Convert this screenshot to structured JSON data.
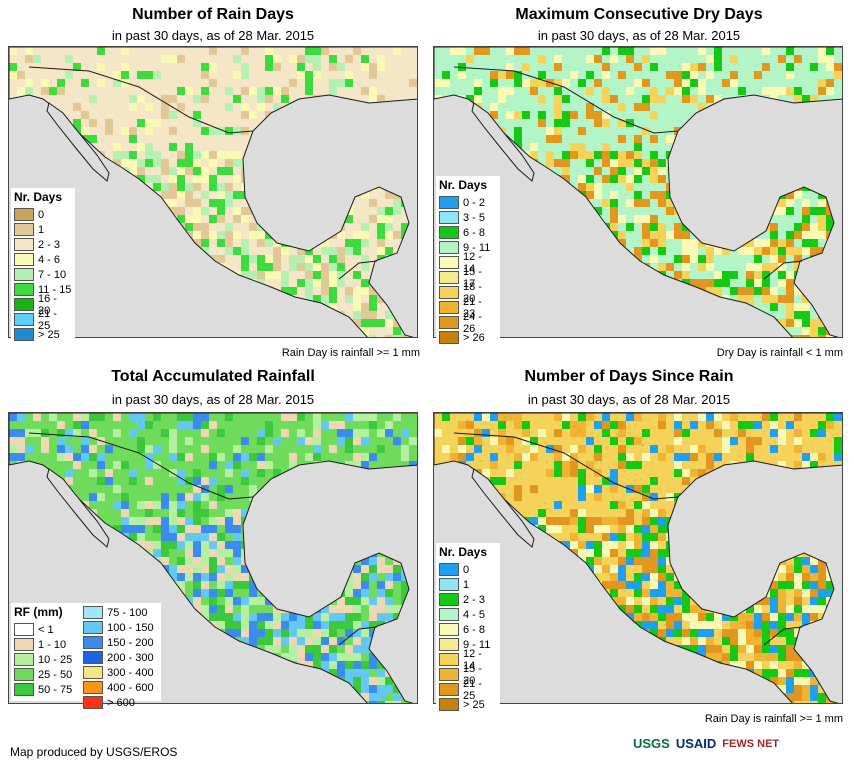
{
  "panels": [
    {
      "title": "Number of Rain Days",
      "subtitle": "in past 30 days, as of 28 Mar. 2015",
      "note": "Rain Day is rainfall >= 1 mm",
      "legend_title": "Nr. Days",
      "legend": [
        {
          "label": "0",
          "color": "#c8a55a"
        },
        {
          "label": "1",
          "color": "#e1c896"
        },
        {
          "label": "2 - 3",
          "color": "#f5e6c8"
        },
        {
          "label": "4 - 6",
          "color": "#fafab4"
        },
        {
          "label": "7 - 10",
          "color": "#b4f0b4"
        },
        {
          "label": "11 - 15",
          "color": "#3cdc3c"
        },
        {
          "label": "16 - 20",
          "color": "#14b414"
        },
        {
          "label": "21 - 25",
          "color": "#5ad2f5"
        },
        {
          "label": "> 25",
          "color": "#1e8cd2"
        }
      ],
      "palette": [
        "#f5e6c8",
        "#f5e6c8",
        "#fafab4",
        "#b4f0b4",
        "#e1c896",
        "#3cdc3c"
      ]
    },
    {
      "title": "Maximum Consecutive Dry Days",
      "subtitle": "in past 30 days, as of 28 Mar. 2015",
      "note": "Dry Day is rainfall < 1 mm",
      "legend_title": "Nr. Days",
      "legend": [
        {
          "label": "0 - 2",
          "color": "#1ea0f0"
        },
        {
          "label": "3 - 5",
          "color": "#8ce6f5"
        },
        {
          "label": "6 - 8",
          "color": "#14c814"
        },
        {
          "label": "9 - 11",
          "color": "#b4f5c8"
        },
        {
          "label": "12 - 14",
          "color": "#fafab4"
        },
        {
          "label": "15 - 17",
          "color": "#f5eb8c"
        },
        {
          "label": "18 - 20",
          "color": "#f5d25a"
        },
        {
          "label": "21 - 23",
          "color": "#f0b432"
        },
        {
          "label": "24 - 26",
          "color": "#e1961e"
        },
        {
          "label": "> 26",
          "color": "#c8820a"
        }
      ],
      "palette": [
        "#b4f5c8",
        "#14c814",
        "#fafab4",
        "#f5d25a",
        "#e1961e",
        "#b4f5c8"
      ]
    },
    {
      "title": "Total Accumulated Rainfall",
      "subtitle": "in past 30 days, as of 28 Mar. 2015",
      "note": "",
      "legend_title": "RF (mm)",
      "legend": [
        {
          "label": "< 1",
          "color": "#ffffff"
        },
        {
          "label": "1 - 10",
          "color": "#f0d7b4"
        },
        {
          "label": "10 - 25",
          "color": "#b4f0a0"
        },
        {
          "label": "25 - 50",
          "color": "#6edc5a"
        },
        {
          "label": "50 - 75",
          "color": "#3cc83c"
        }
      ],
      "legend2": [
        {
          "label": "75 - 100",
          "color": "#a0e6fa"
        },
        {
          "label": "100 - 150",
          "color": "#64c8f5"
        },
        {
          "label": "150 - 200",
          "color": "#3c8cf0"
        },
        {
          "label": "200 - 300",
          "color": "#1e64dc"
        },
        {
          "label": "300 - 400",
          "color": "#fae682"
        },
        {
          "label": "400 - 600",
          "color": "#fa9614"
        },
        {
          "label": "> 600",
          "color": "#fa3214"
        }
      ],
      "palette": [
        "#6edc5a",
        "#b4f0a0",
        "#3cc83c",
        "#64c8f5",
        "#f0d7b4",
        "#3c8cf0"
      ]
    },
    {
      "title": "Number of Days Since Rain",
      "subtitle": "in past 30 days, as of 28 Mar. 2015",
      "note": "Rain Day is rainfall >= 1 mm",
      "legend_title": "Nr. Days",
      "legend": [
        {
          "label": "0",
          "color": "#1ea0f0"
        },
        {
          "label": "1",
          "color": "#8ce6f5"
        },
        {
          "label": "2 - 3",
          "color": "#14c814"
        },
        {
          "label": "4 - 5",
          "color": "#b4f5c8"
        },
        {
          "label": "6 - 8",
          "color": "#fafab4"
        },
        {
          "label": "9 - 11",
          "color": "#f5eb8c"
        },
        {
          "label": "12 - 14",
          "color": "#f5d25a"
        },
        {
          "label": "15 - 20",
          "color": "#f0b432"
        },
        {
          "label": "21 - 25",
          "color": "#e1961e"
        },
        {
          "label": "> 25",
          "color": "#c8820a"
        }
      ],
      "palette": [
        "#f5d25a",
        "#fafab4",
        "#e1961e",
        "#1ea0f0",
        "#14c814",
        "#f0b432"
      ]
    }
  ],
  "credit": "Map produced by USGS/EROS",
  "logos": {
    "usgs": "USGS",
    "usaid": "USAID",
    "fewsnet": "FEWS NET"
  },
  "colors": {
    "ocean": "#dcdcdc",
    "border": "#1a1a1a"
  }
}
